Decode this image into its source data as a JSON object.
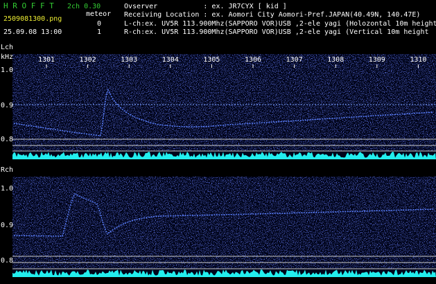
{
  "header": {
    "app_title": "H R O F F T",
    "mode": "2ch 0.30",
    "filename": "2509081300.png",
    "meteor_label": "meteor",
    "counts": [
      "0",
      "1"
    ],
    "datetime": "25.09.08 13:00",
    "info": [
      "Ovserver           : ex. JR7CYX [ kid ]",
      "Receiving Location : ex. Aomori City Aomori-Pref.JAPAN(40.49N, 140.47E)",
      "L-ch:ex. UV5R 113.900Mhz(SAPPORO VOR)USB ,2-ele yagi (Holozontal 10m height",
      "R-ch:ex. UV5R 113.900Mhz(SAPPORO VOR)USB ,2-ele yagi (Vertical 10m height"
    ]
  },
  "panels": [
    {
      "channel": "Lch",
      "unit": "kHz",
      "xticks": [
        "1301",
        "1302",
        "1303",
        "1304",
        "1305",
        "1306",
        "1307",
        "1308",
        "1309",
        "1310"
      ],
      "yticks": [
        "1.0",
        "0.9",
        "0.8"
      ]
    },
    {
      "channel": "Rch",
      "yticks": [
        "1.0",
        "0.9",
        "0.8"
      ]
    }
  ]
}
